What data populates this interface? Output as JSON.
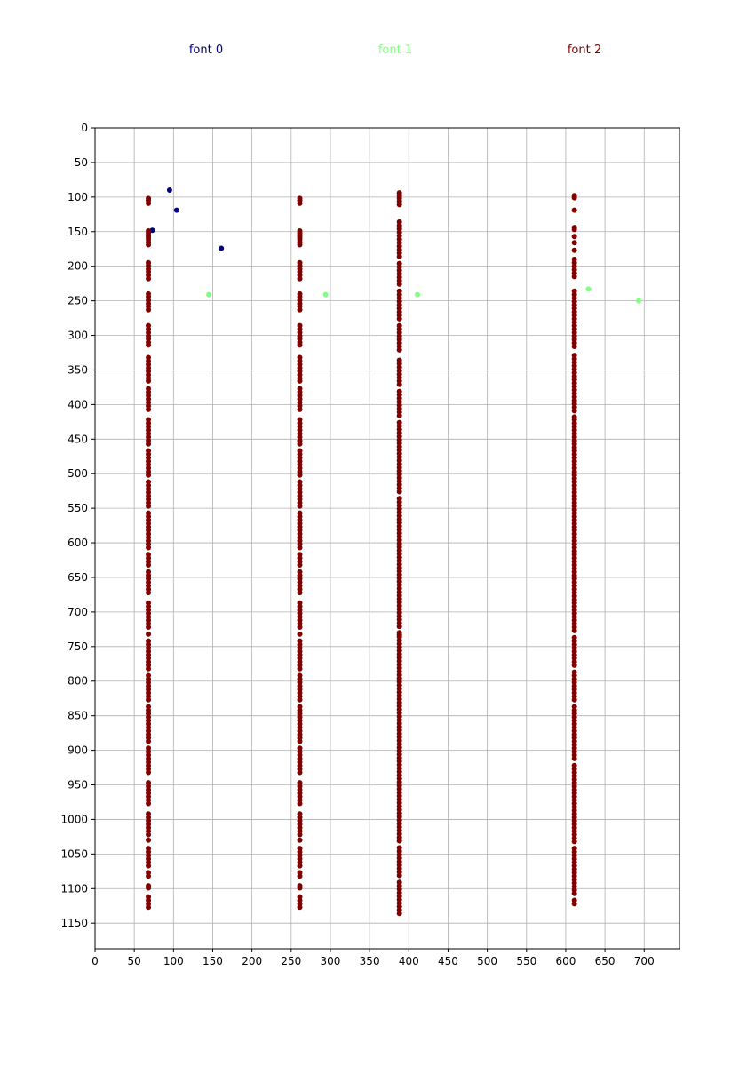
{
  "chart_data": {
    "type": "scatter",
    "title": "",
    "xlabel": "",
    "ylabel": "",
    "xlim": [
      0,
      745
    ],
    "ylim": [
      1187,
      0
    ],
    "y_inverted": true,
    "grid": true,
    "legend_position": "top",
    "x_ticks": [
      0,
      50,
      100,
      150,
      200,
      250,
      300,
      350,
      400,
      450,
      500,
      550,
      600,
      650,
      700
    ],
    "y_ticks": [
      0,
      50,
      100,
      150,
      200,
      250,
      300,
      350,
      400,
      450,
      500,
      550,
      600,
      650,
      700,
      750,
      800,
      850,
      900,
      950,
      1000,
      1050,
      1100,
      1150
    ],
    "x_tick_labels": [
      "0",
      "50",
      "100",
      "150",
      "200",
      "250",
      "300",
      "350",
      "400",
      "450",
      "500",
      "550",
      "600",
      "650",
      "700"
    ],
    "y_tick_labels": [
      "0",
      "50",
      "100",
      "150",
      "200",
      "250",
      "300",
      "350",
      "400",
      "450",
      "500",
      "550",
      "600",
      "650",
      "700",
      "750",
      "800",
      "850",
      "900",
      "950",
      "1000",
      "1050",
      "1100",
      "1150"
    ],
    "series": [
      {
        "name": "font 0",
        "color": "#000080",
        "points": [
          [
            95,
            90
          ],
          [
            104,
            119
          ],
          [
            73,
            148
          ],
          [
            161,
            174
          ]
        ]
      },
      {
        "name": "font 1",
        "color": "#80ff80",
        "points": [
          [
            145,
            241
          ],
          [
            294,
            241
          ],
          [
            411,
            241
          ],
          [
            629,
            233
          ],
          [
            693,
            250
          ]
        ]
      },
      {
        "name": "font 2",
        "color": "#800000",
        "columns": [
          {
            "x": 68,
            "ys": [
              102,
              105,
              109,
              149,
              152,
              155,
              158,
              161,
              165,
              169,
              195,
              199,
              204,
              208,
              213,
              218,
              240,
              244,
              249,
              254,
              258,
              263,
              286,
              291,
              296,
              301,
              305,
              310,
              314,
              332,
              337,
              342,
              347,
              352,
              357,
              362,
              366,
              377,
              382,
              387,
              392,
              397,
              402,
              407,
              422,
              427,
              432,
              437,
              442,
              447,
              452,
              457,
              467,
              472,
              477,
              482,
              487,
              492,
              497,
              502,
              512,
              517,
              522,
              527,
              532,
              537,
              542,
              547,
              557,
              562,
              567,
              572,
              577,
              582,
              587,
              592,
              597,
              602,
              607,
              617,
              622,
              627,
              632,
              642,
              647,
              652,
              657,
              662,
              667,
              672,
              687,
              692,
              697,
              702,
              707,
              712,
              717,
              722,
              732,
              742,
              747,
              752,
              757,
              762,
              767,
              772,
              777,
              782,
              792,
              797,
              802,
              807,
              812,
              817,
              822,
              827,
              837,
              842,
              847,
              852,
              857,
              862,
              867,
              872,
              877,
              882,
              887,
              897,
              902,
              907,
              912,
              917,
              922,
              927,
              932,
              947,
              952,
              957,
              962,
              967,
              972,
              977,
              992,
              997,
              1002,
              1007,
              1012,
              1017,
              1022,
              1030,
              1042,
              1047,
              1052,
              1057,
              1062,
              1067,
              1077,
              1082,
              1096,
              1099,
              1112,
              1117,
              1122,
              1127
            ]
          },
          {
            "x": 261,
            "ys": [
              102,
              105,
              109,
              149,
              152,
              155,
              158,
              161,
              165,
              169,
              195,
              199,
              204,
              208,
              213,
              218,
              240,
              244,
              249,
              254,
              258,
              263,
              286,
              291,
              296,
              301,
              305,
              310,
              314,
              332,
              337,
              342,
              347,
              352,
              357,
              362,
              366,
              377,
              382,
              387,
              392,
              397,
              402,
              407,
              422,
              427,
              432,
              437,
              442,
              447,
              452,
              457,
              467,
              472,
              477,
              482,
              487,
              492,
              497,
              502,
              512,
              517,
              522,
              527,
              532,
              537,
              542,
              547,
              557,
              562,
              567,
              572,
              577,
              582,
              587,
              592,
              597,
              602,
              607,
              617,
              622,
              627,
              632,
              642,
              647,
              652,
              657,
              662,
              667,
              672,
              687,
              692,
              697,
              702,
              707,
              712,
              717,
              722,
              732,
              742,
              747,
              752,
              757,
              762,
              767,
              772,
              777,
              782,
              792,
              797,
              802,
              807,
              812,
              817,
              822,
              827,
              837,
              842,
              847,
              852,
              857,
              862,
              867,
              872,
              877,
              882,
              887,
              897,
              902,
              907,
              912,
              917,
              922,
              927,
              932,
              947,
              952,
              957,
              962,
              967,
              972,
              977,
              992,
              997,
              1002,
              1007,
              1012,
              1017,
              1022,
              1030,
              1042,
              1047,
              1052,
              1057,
              1062,
              1067,
              1077,
              1082,
              1096,
              1099,
              1112,
              1117,
              1122,
              1127
            ]
          },
          {
            "x": 388,
            "ys": [
              94,
              98,
              102,
              106,
              111,
              136,
              141,
              146,
              151,
              156,
              161,
              166,
              171,
              176,
              181,
              186,
              196,
              201,
              206,
              211,
              216,
              221,
              226,
              236,
              241,
              246,
              251,
              256,
              261,
              266,
              271,
              276,
              286,
              291,
              296,
              301,
              306,
              311,
              316,
              321,
              336,
              341,
              346,
              351,
              356,
              361,
              366,
              371,
              381,
              386,
              391,
              396,
              401,
              406,
              411,
              416,
              426,
              431,
              436,
              441,
              446,
              451,
              456,
              461,
              466,
              471,
              476,
              481,
              486,
              491,
              496,
              501,
              506,
              511,
              516,
              521,
              526,
              536,
              541,
              546,
              551,
              556,
              561,
              566,
              571,
              576,
              581,
              586,
              591,
              596,
              601,
              606,
              611,
              616,
              621,
              626,
              631,
              636,
              641,
              646,
              651,
              656,
              661,
              666,
              671,
              676,
              681,
              686,
              691,
              696,
              701,
              706,
              711,
              716,
              721,
              730,
              733,
              736,
              741,
              746,
              751,
              756,
              761,
              766,
              771,
              776,
              781,
              786,
              791,
              796,
              801,
              806,
              811,
              816,
              821,
              826,
              831,
              836,
              841,
              846,
              851,
              856,
              861,
              866,
              871,
              876,
              881,
              886,
              891,
              896,
              901,
              906,
              911,
              916,
              921,
              926,
              931,
              936,
              941,
              946,
              951,
              956,
              961,
              966,
              971,
              976,
              981,
              986,
              991,
              996,
              1001,
              1006,
              1011,
              1016,
              1021,
              1026,
              1031,
              1041,
              1046,
              1051,
              1056,
              1061,
              1066,
              1071,
              1076,
              1081,
              1091,
              1096,
              1101,
              1106,
              1111,
              1116,
              1121,
              1126,
              1131,
              1136
            ]
          },
          {
            "x": 611,
            "ys": [
              98,
              101,
              119,
              144,
              147,
              157,
              166,
              177,
              190,
              195,
              200,
              205,
              210,
              215,
              236,
              241,
              246,
              251,
              256,
              261,
              266,
              271,
              276,
              281,
              286,
              291,
              296,
              301,
              306,
              311,
              316,
              329,
              334,
              339,
              344,
              349,
              354,
              359,
              364,
              369,
              374,
              379,
              384,
              389,
              394,
              399,
              404,
              409,
              418,
              422,
              427,
              432,
              437,
              442,
              447,
              452,
              457,
              462,
              467,
              472,
              477,
              482,
              487,
              492,
              497,
              502,
              507,
              512,
              517,
              522,
              527,
              532,
              537,
              542,
              547,
              552,
              557,
              562,
              567,
              572,
              577,
              582,
              587,
              592,
              597,
              602,
              607,
              612,
              617,
              622,
              627,
              632,
              637,
              642,
              647,
              652,
              657,
              662,
              667,
              672,
              677,
              682,
              687,
              692,
              697,
              702,
              707,
              712,
              717,
              722,
              727,
              737,
              742,
              747,
              752,
              757,
              762,
              767,
              772,
              777,
              787,
              792,
              797,
              802,
              807,
              812,
              817,
              822,
              827,
              837,
              842,
              847,
              852,
              857,
              862,
              867,
              872,
              877,
              882,
              887,
              892,
              897,
              902,
              907,
              912,
              922,
              927,
              932,
              937,
              942,
              947,
              952,
              957,
              962,
              967,
              972,
              977,
              982,
              987,
              992,
              997,
              1002,
              1007,
              1012,
              1017,
              1022,
              1027,
              1032,
              1042,
              1047,
              1052,
              1057,
              1062,
              1067,
              1072,
              1077,
              1082,
              1087,
              1092,
              1097,
              1102,
              1107,
              1117,
              1122
            ]
          }
        ]
      }
    ]
  }
}
